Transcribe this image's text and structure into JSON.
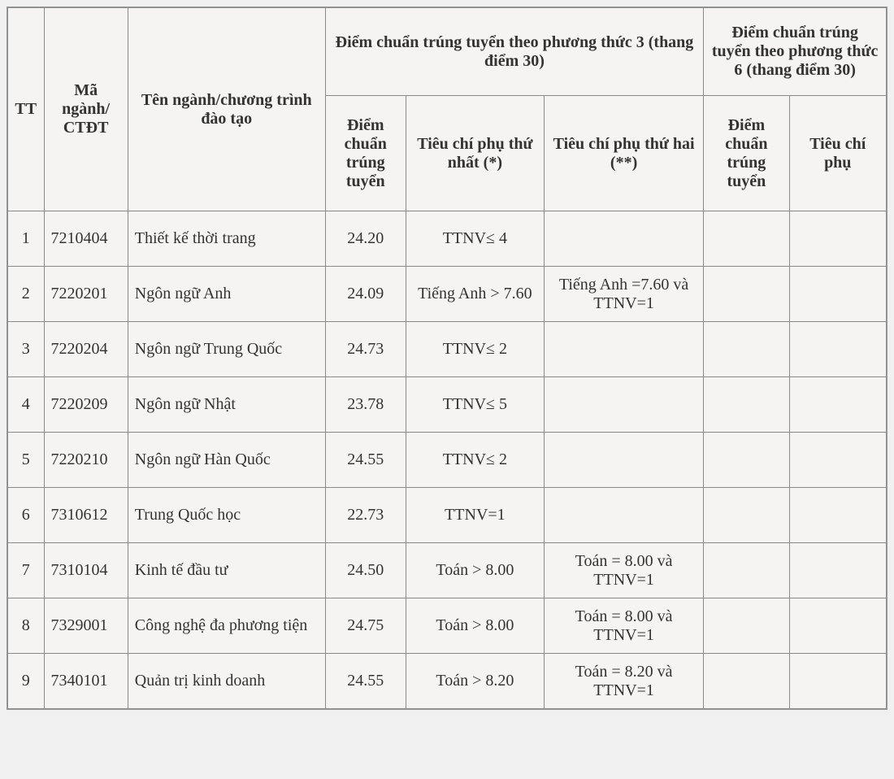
{
  "table": {
    "header": {
      "tt": "TT",
      "code": "Mã ngành/ CTĐT",
      "name": "Tên ngành/chương trình đào tạo",
      "group_p3": "Điểm chuẩn trúng tuyển theo phương thức 3 (thang điểm 30)",
      "group_p6": "Điểm chuẩn trúng tuyển theo phương thức 6 (thang điểm 30)",
      "p3_score": "Điểm chuẩn trúng tuyển",
      "p3_crit1": "Tiêu chí phụ thứ nhất (*)",
      "p3_crit2": "Tiêu chí phụ thứ hai (**)",
      "p6_score": "Điểm chuẩn trúng tuyển",
      "p6_crit": "Tiêu chí phụ"
    },
    "rows": [
      {
        "tt": "1",
        "code": "7210404",
        "name": "Thiết kế thời trang",
        "p3_score": "24.20",
        "p3_crit1": "TTNV≤ 4",
        "p3_crit2": "",
        "p6_score": "",
        "p6_crit": ""
      },
      {
        "tt": "2",
        "code": "7220201",
        "name": "Ngôn ngữ Anh",
        "p3_score": "24.09",
        "p3_crit1": "Tiếng Anh > 7.60",
        "p3_crit2": "Tiếng Anh =7.60 và TTNV=1",
        "p6_score": "",
        "p6_crit": ""
      },
      {
        "tt": "3",
        "code": "7220204",
        "name": "Ngôn ngữ Trung Quốc",
        "p3_score": "24.73",
        "p3_crit1": "TTNV≤ 2",
        "p3_crit2": "",
        "p6_score": "",
        "p6_crit": ""
      },
      {
        "tt": "4",
        "code": "7220209",
        "name": "Ngôn ngữ Nhật",
        "p3_score": "23.78",
        "p3_crit1": "TTNV≤ 5",
        "p3_crit2": "",
        "p6_score": "",
        "p6_crit": ""
      },
      {
        "tt": "5",
        "code": "7220210",
        "name": "Ngôn ngữ Hàn Quốc",
        "p3_score": "24.55",
        "p3_crit1": "TTNV≤ 2",
        "p3_crit2": "",
        "p6_score": "",
        "p6_crit": ""
      },
      {
        "tt": "6",
        "code": "7310612",
        "name": "Trung Quốc học",
        "p3_score": "22.73",
        "p3_crit1": "TTNV=1",
        "p3_crit2": "",
        "p6_score": "",
        "p6_crit": ""
      },
      {
        "tt": "7",
        "code": "7310104",
        "name": "Kinh tế đầu tư",
        "p3_score": "24.50",
        "p3_crit1": "Toán > 8.00",
        "p3_crit2": "Toán = 8.00 và TTNV=1",
        "p6_score": "",
        "p6_crit": ""
      },
      {
        "tt": "8",
        "code": "7329001",
        "name": "Công nghệ đa phương tiện",
        "p3_score": "24.75",
        "p3_crit1": "Toán > 8.00",
        "p3_crit2": "Toán = 8.00 và TTNV=1",
        "p6_score": "",
        "p6_crit": ""
      },
      {
        "tt": "9",
        "code": "7340101",
        "name": "Quản trị kinh doanh",
        "p3_score": "24.55",
        "p3_crit1": "Toán > 8.20",
        "p3_crit2": "Toán = 8.20 và TTNV=1",
        "p6_score": "",
        "p6_crit": ""
      }
    ],
    "columns_align": {
      "tt": "c",
      "code": "l",
      "name": "l",
      "p3_score": "c",
      "p3_crit1": "c",
      "p3_crit2": "c",
      "p6_score": "c",
      "p6_crit": "c"
    },
    "style": {
      "background_color": "#f5f4f2",
      "border_color": "#8a8a88",
      "text_color": "#333333",
      "font_family": "Times New Roman",
      "font_size_pt": 15
    }
  }
}
